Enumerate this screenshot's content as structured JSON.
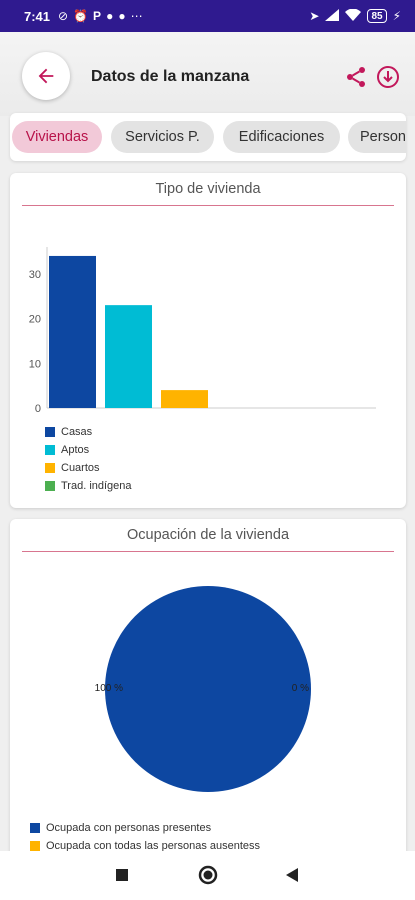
{
  "status_bar": {
    "time": "7:41",
    "notif_text": "P",
    "battery": "85"
  },
  "header": {
    "title": "Datos de la manzana",
    "back_icon": "arrow-left-icon",
    "share_icon": "share-icon",
    "download_icon": "download-icon",
    "accent_color": "#c2185b"
  },
  "tabs": [
    {
      "label": "Viviendas",
      "active": true
    },
    {
      "label": "Servicios P.",
      "active": false
    },
    {
      "label": "Edificaciones",
      "active": false
    },
    {
      "label": "Person",
      "active": false
    }
  ],
  "housing_card": {
    "title": "Tipo de vivienda"
  },
  "occupancy_card": {
    "title": "Ocupación de la vivienda"
  },
  "chart_data": [
    {
      "type": "bar",
      "title": "Tipo de vivienda",
      "categories": [
        "Casas",
        "Aptos",
        "Cuartos",
        "Trad. indígena"
      ],
      "values": [
        34,
        23,
        4,
        0
      ],
      "colors": [
        "#0d47a1",
        "#00bcd4",
        "#ffb300",
        "#4caf50"
      ],
      "y_ticks": [
        "0",
        "10",
        "20",
        "30"
      ],
      "ylim": [
        0,
        36
      ],
      "legend": [
        "Casas",
        "Aptos",
        "Cuartos",
        "Trad. indígena"
      ],
      "legend_position": "bottom-left"
    },
    {
      "type": "pie",
      "title": "Ocupación de la vivienda",
      "slices": [
        {
          "label": "Ocupada con personas presentes",
          "value": 100,
          "color": "#0d47a1"
        },
        {
          "label": "Ocupada con todas las personas ausentess",
          "value": 0,
          "color": "#ffb300"
        }
      ],
      "slice_labels": [
        "100 %",
        "0 %"
      ],
      "legend_position": "bottom-left"
    }
  ]
}
